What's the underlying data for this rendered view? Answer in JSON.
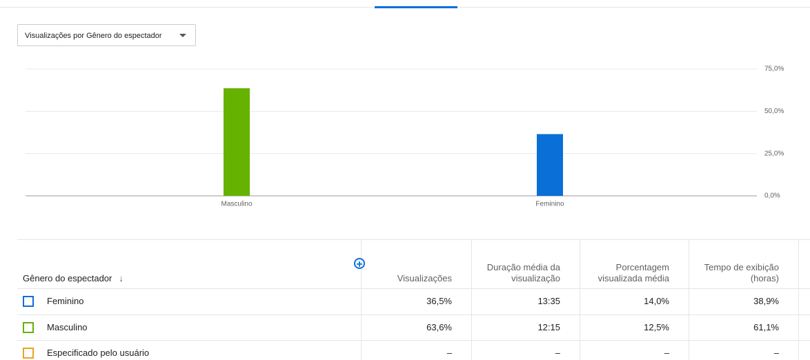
{
  "dropdown": {
    "label": "Visualizações por Gênero do espectador"
  },
  "chart_data": {
    "type": "bar",
    "categories": [
      "Masculino",
      "Feminino"
    ],
    "values": [
      63.6,
      36.5
    ],
    "colors": [
      "#65b200",
      "#0a6fd6"
    ],
    "ylim": [
      0,
      75
    ],
    "yticks": [
      {
        "value": 0,
        "label": "0,0%"
      },
      {
        "value": 25,
        "label": "25,0%"
      },
      {
        "value": 50,
        "label": "50,0%"
      },
      {
        "value": 75,
        "label": "75,0%"
      }
    ],
    "grid": true
  },
  "table": {
    "columns": [
      "Gênero do espectador",
      "Visualizações",
      "Duração média da visualização",
      "Porcentagem visualizada média",
      "Tempo de exibição (horas)"
    ],
    "rows": [
      {
        "color": "#0a6fd6",
        "cells": [
          "Feminino",
          "36,5%",
          "13:35",
          "14,0%",
          "38,9%"
        ]
      },
      {
        "color": "#65b200",
        "cells": [
          "Masculino",
          "63,6%",
          "12:15",
          "12,5%",
          "61,1%"
        ]
      },
      {
        "color": "#f0a020",
        "cells": [
          "Especificado pelo usuário",
          "–",
          "–",
          "–",
          "–"
        ]
      }
    ]
  }
}
